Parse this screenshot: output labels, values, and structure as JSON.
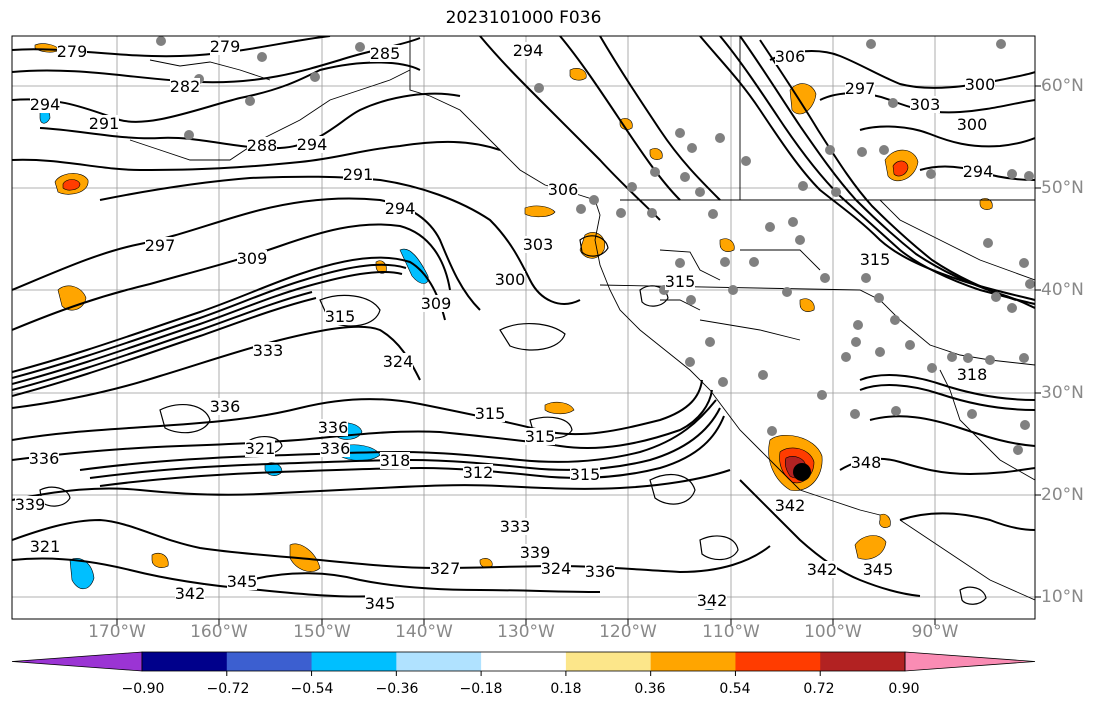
{
  "title": "2023101000 F036",
  "lon_labels": [
    "170°W",
    "160°W",
    "150°W",
    "140°W",
    "130°W",
    "120°W",
    "110°W",
    "100°W",
    "90°W"
  ],
  "lat_labels": [
    "60°N",
    "50°N",
    "40°N",
    "30°N",
    "20°N",
    "10°N"
  ],
  "contour_labels": [
    "279",
    "279",
    "285",
    "294",
    "306",
    "297",
    "303",
    "300",
    "300",
    "294",
    "282",
    "291",
    "288",
    "291",
    "294",
    "294",
    "297",
    "309",
    "303",
    "300",
    "315",
    "315",
    "306",
    "315",
    "318",
    "315",
    "324",
    "333",
    "336",
    "336",
    "321",
    "336",
    "312",
    "315",
    "315",
    "327",
    "318",
    "348",
    "342",
    "345",
    "342",
    "342",
    "333",
    "339",
    "324",
    "321",
    "336",
    "345",
    "345",
    "342",
    "336",
    "339",
    "309",
    "294"
  ],
  "colorbar": {
    "ticks": [
      "−0.90",
      "−0.72",
      "−0.54",
      "−0.36",
      "−0.18",
      "0.18",
      "0.36",
      "0.54",
      "0.72",
      "0.90"
    ],
    "colors": [
      "#9b34d4",
      "#00008b",
      "#3c5fd0",
      "#00bfff",
      "#b0e2ff",
      "#ffffff",
      "#fce68a",
      "#ffa500",
      "#ff3c00",
      "#b22222",
      "#fa8cb4"
    ]
  }
}
